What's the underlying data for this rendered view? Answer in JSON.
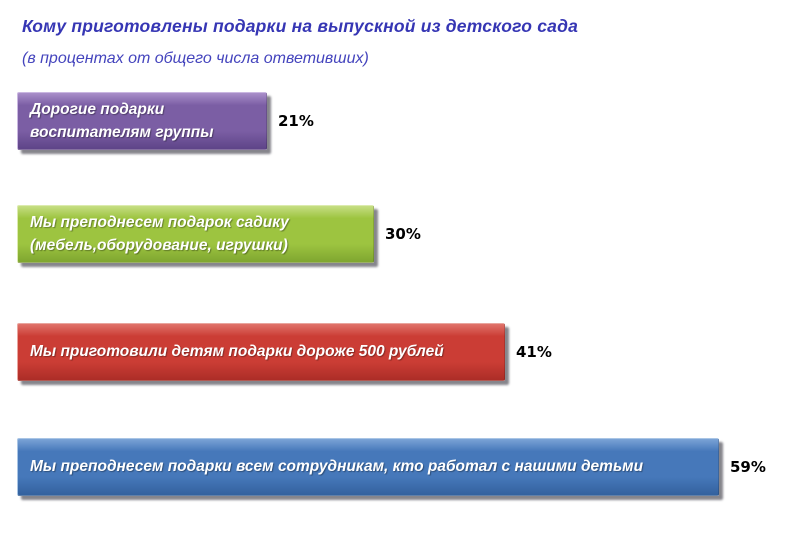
{
  "header": {
    "title": "Кому приготовлены подарки на выпускной из детского сада",
    "subtitle": "(в процентах от общего числа ответивших)",
    "title_color": "#3636b4",
    "subtitle_color": "#4444bd"
  },
  "chart_data": {
    "type": "bar",
    "orientation": "horizontal",
    "title": "Кому приготовлены подарки на выпускной из детского сада",
    "subtitle": "(в процентах от общего числа ответивших)",
    "categories": [
      "Дорогие подарки воспитателям группы",
      "Мы преподнесем подарок садику (мебель,оборудование, игрушки)",
      "Мы приготовили детям подарки дороже 500 рублей",
      "Мы преподнесем подарки всем сотрудникам, кто работал с нашими детьми"
    ],
    "values": [
      21,
      30,
      41,
      59
    ],
    "value_labels": [
      "21%",
      "30%",
      "41%",
      "59%"
    ],
    "unit": "%",
    "xlim": [
      0,
      100
    ],
    "grid": false,
    "legend": false,
    "value_label_position": "right-of-bar",
    "bar_text_color": "#ffffff",
    "bar_colors": [
      {
        "name": "purple",
        "light": "#a98fc9",
        "base": "#7b5ea4",
        "dark": "#5e4488",
        "border": "#cab7e1"
      },
      {
        "name": "green",
        "light": "#c6de84",
        "base": "#9dc440",
        "dark": "#7fa630",
        "border": "#dcebae"
      },
      {
        "name": "red",
        "light": "#e0736b",
        "base": "#cb3d35",
        "dark": "#ac2d27",
        "border": "#e9a59e"
      },
      {
        "name": "blue",
        "light": "#7ba3d6",
        "base": "#4678ba",
        "dark": "#33619e",
        "border": "#a9c5e5"
      }
    ]
  }
}
